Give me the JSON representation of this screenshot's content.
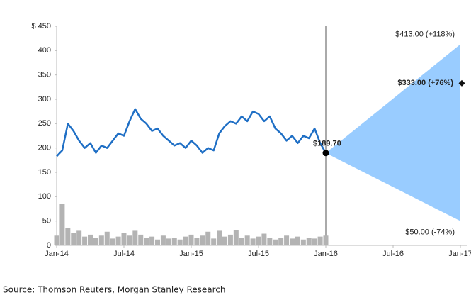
{
  "chart_data": {
    "type": "line",
    "ylim": [
      0,
      450
    ],
    "yticks": [
      0,
      50,
      100,
      150,
      200,
      250,
      300,
      350,
      400,
      {
        "value": 450,
        "label": "$ 450"
      }
    ],
    "xlim": [
      0,
      36
    ],
    "xticks": [
      {
        "value": 0,
        "label": "Jan-14"
      },
      {
        "value": 6,
        "label": "Jul-14"
      },
      {
        "value": 12,
        "label": "Jan-15"
      },
      {
        "value": 18,
        "label": "Jul-15"
      },
      {
        "value": 24,
        "label": "Jan-16"
      },
      {
        "value": 30,
        "label": "Jul-16"
      },
      {
        "value": 36,
        "label": "Jan-17"
      }
    ],
    "series": [
      {
        "type": "line",
        "color": "#1f6fc5",
        "x": [
          0,
          0.5,
          1,
          1.5,
          2,
          2.5,
          3,
          3.5,
          4,
          4.5,
          5,
          5.5,
          6,
          6.5,
          7,
          7.5,
          8,
          8.5,
          9,
          9.5,
          10,
          10.5,
          11,
          11.5,
          12,
          12.5,
          13,
          13.5,
          14,
          14.5,
          15,
          15.5,
          16,
          16.5,
          17,
          17.5,
          18,
          18.5,
          19,
          19.5,
          20,
          20.5,
          21,
          21.5,
          22,
          22.5,
          23,
          23.5,
          24
        ],
        "values": [
          183,
          195,
          250,
          235,
          215,
          200,
          210,
          190,
          205,
          200,
          215,
          230,
          225,
          255,
          280,
          260,
          250,
          235,
          240,
          225,
          215,
          205,
          210,
          200,
          215,
          205,
          190,
          200,
          195,
          230,
          245,
          255,
          250,
          265,
          255,
          275,
          270,
          255,
          265,
          240,
          230,
          215,
          225,
          210,
          225,
          220,
          240,
          210,
          189.7
        ]
      },
      {
        "type": "bar",
        "color": "#b3b3b3",
        "x": [
          0,
          0.5,
          1,
          1.5,
          2,
          2.5,
          3,
          3.5,
          4,
          4.5,
          5,
          5.5,
          6,
          6.5,
          7,
          7.5,
          8,
          8.5,
          9,
          9.5,
          10,
          10.5,
          11,
          11.5,
          12,
          12.5,
          13,
          13.5,
          14,
          14.5,
          15,
          15.5,
          16,
          16.5,
          17,
          17.5,
          18,
          18.5,
          19,
          19.5,
          20,
          20.5,
          21,
          21.5,
          22,
          22.5,
          23,
          23.5,
          24
        ],
        "values": [
          20,
          85,
          35,
          25,
          30,
          18,
          22,
          15,
          20,
          28,
          14,
          18,
          25,
          20,
          30,
          22,
          15,
          18,
          12,
          20,
          14,
          16,
          12,
          18,
          22,
          15,
          20,
          28,
          14,
          30,
          18,
          22,
          32,
          16,
          20,
          14,
          18,
          24,
          15,
          12,
          16,
          20,
          14,
          18,
          12,
          16,
          14,
          18,
          20
        ]
      }
    ],
    "cone": {
      "color": "#99ccff",
      "start": {
        "x": 24,
        "value": 189.7,
        "label": "$189.70"
      },
      "high": {
        "x": 36,
        "value": 413,
        "label": "$413.00 (+118%)"
      },
      "low": {
        "x": 36,
        "value": 50,
        "label": "$50.00 (-74%)"
      }
    },
    "target": {
      "x": 36,
      "value": 333,
      "label": "$333.00 (+76%)"
    },
    "source": "Source: Thomson Reuters, Morgan Stanley Research"
  }
}
